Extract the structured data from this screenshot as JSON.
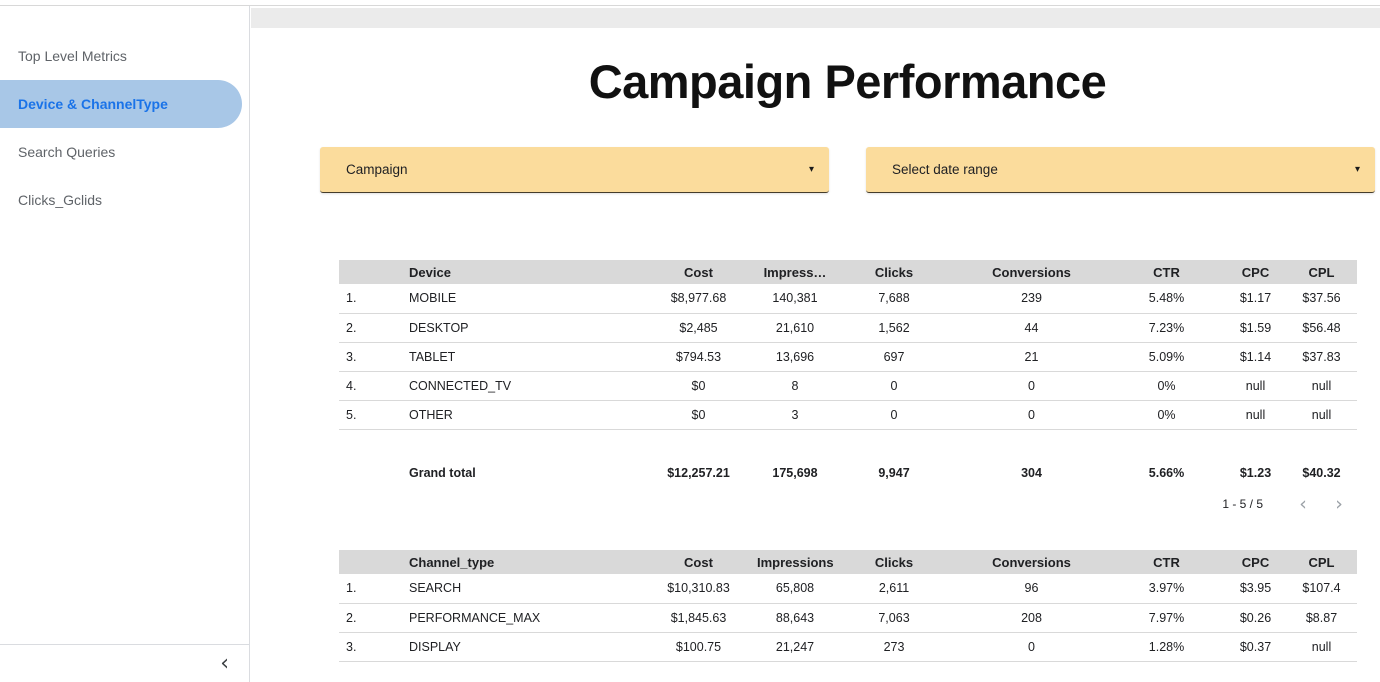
{
  "sidebar": {
    "items": [
      {
        "label": "Top Level Metrics",
        "selected": false
      },
      {
        "label": "Device & ChannelType",
        "selected": true
      },
      {
        "label": "Search Queries",
        "selected": false
      },
      {
        "label": "Clicks_Gclids",
        "selected": false
      }
    ]
  },
  "header": {
    "title": "Campaign Performance"
  },
  "filters": {
    "campaign": {
      "label": "Campaign"
    },
    "date_range": {
      "label": "Select date range"
    }
  },
  "device_table": {
    "columns": [
      "",
      "Device",
      "Cost",
      "Impress…",
      "Clicks",
      "Conversions",
      "CTR",
      "CPC",
      "CPL"
    ],
    "rows": [
      [
        "1.",
        "MOBILE",
        "$8,977.68",
        "140,381",
        "7,688",
        "239",
        "5.48%",
        "$1.17",
        "$37.56"
      ],
      [
        "2.",
        "DESKTOP",
        "$2,485",
        "21,610",
        "1,562",
        "44",
        "7.23%",
        "$1.59",
        "$56.48"
      ],
      [
        "3.",
        "TABLET",
        "$794.53",
        "13,696",
        "697",
        "21",
        "5.09%",
        "$1.14",
        "$37.83"
      ],
      [
        "4.",
        "CONNECTED_TV",
        "$0",
        "8",
        "0",
        "0",
        "0%",
        "null",
        "null"
      ],
      [
        "5.",
        "OTHER",
        "$0",
        "3",
        "0",
        "0",
        "0%",
        "null",
        "null"
      ]
    ],
    "grand_total": [
      "",
      "Grand total",
      "$12,257.21",
      "175,698",
      "9,947",
      "304",
      "5.66%",
      "$1.23",
      "$40.32"
    ],
    "pagination": "1 - 5 / 5"
  },
  "channel_table": {
    "columns": [
      "",
      "Channel_type",
      "Cost",
      "Impressions",
      "Clicks",
      "Conversions",
      "CTR",
      "CPC",
      "CPL"
    ],
    "rows": [
      [
        "1.",
        "SEARCH",
        "$10,310.83",
        "65,808",
        "2,611",
        "96",
        "3.97%",
        "$3.95",
        "$107.4"
      ],
      [
        "2.",
        "PERFORMANCE_MAX",
        "$1,845.63",
        "88,643",
        "7,063",
        "208",
        "7.97%",
        "$0.26",
        "$8.87"
      ],
      [
        "3.",
        "DISPLAY",
        "$100.75",
        "21,247",
        "273",
        "0",
        "1.28%",
        "$0.37",
        "null"
      ]
    ]
  },
  "icons": {
    "dropdown_caret": "▾",
    "chevron_left": "‹",
    "chevron_right": "›",
    "collapse_chevron": "‹"
  },
  "colors": {
    "selected_nav_bg": "#a8c7e7",
    "selected_nav_text": "#1a73e8",
    "nav_text": "#5f6368",
    "dropdown_bg": "#fbdc9c",
    "table_header_bg": "#d9d9d9",
    "toolbar_strip_bg": "#ebebeb",
    "disabled_chevron": "#9aa0a6"
  }
}
